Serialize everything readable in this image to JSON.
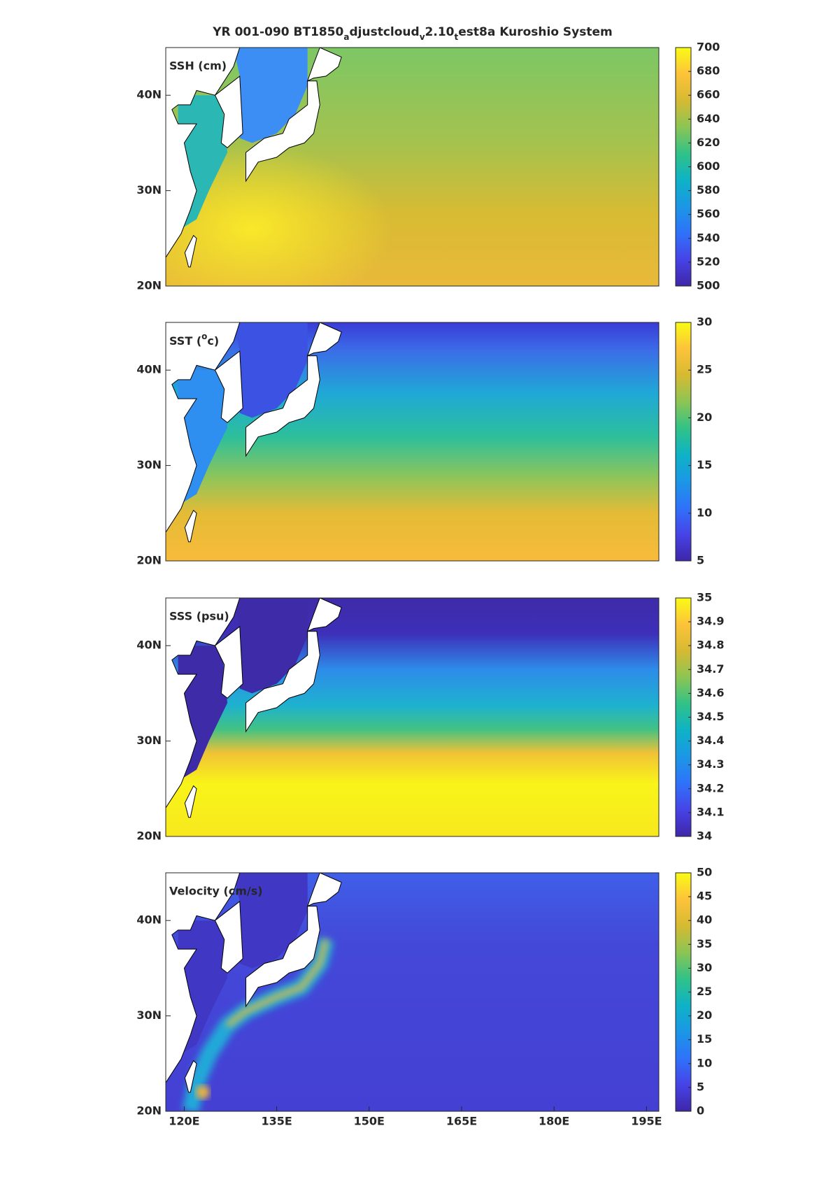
{
  "title": [
    "YR 001-090 BT1850",
    "a",
    "djustcloud",
    "v",
    "2.10",
    "t",
    "est8a Kuroshio System"
  ],
  "chart_data": [
    {
      "type": "map",
      "label": "SSH (cm)",
      "xlim": [
        117,
        197
      ],
      "ylim": [
        20,
        45
      ],
      "yticks": [
        {
          "value": 20,
          "label": "20N"
        },
        {
          "value": 30,
          "label": "30N"
        },
        {
          "value": 40,
          "label": "40N"
        }
      ],
      "clim": [
        500,
        700
      ],
      "cticks": [
        500,
        520,
        540,
        560,
        580,
        600,
        620,
        640,
        660,
        680,
        700
      ],
      "colormap": [
        "#3e26a8",
        "#4743e7",
        "#2f72fa",
        "#1b97e6",
        "#0eb2c6",
        "#30c287",
        "#8cc554",
        "#d6ba32",
        "#fdc33a",
        "#f9fb15"
      ]
    },
    {
      "type": "map",
      "label": [
        "SST (",
        "o",
        "c)"
      ],
      "xlim": [
        117,
        197
      ],
      "ylim": [
        20,
        45
      ],
      "yticks": [
        {
          "value": 20,
          "label": "20N"
        },
        {
          "value": 30,
          "label": "30N"
        },
        {
          "value": 40,
          "label": "40N"
        }
      ],
      "clim": [
        5,
        30
      ],
      "cticks": [
        5,
        10,
        15,
        20,
        25,
        30
      ],
      "colormap": [
        "#3e26a8",
        "#4743e7",
        "#2f72fa",
        "#1b97e6",
        "#0eb2c6",
        "#30c287",
        "#8cc554",
        "#d6ba32",
        "#fdc33a",
        "#f9fb15"
      ]
    },
    {
      "type": "map",
      "label": "SSS (psu)",
      "xlim": [
        117,
        197
      ],
      "ylim": [
        20,
        45
      ],
      "yticks": [
        {
          "value": 20,
          "label": "20N"
        },
        {
          "value": 30,
          "label": "30N"
        },
        {
          "value": 40,
          "label": "40N"
        }
      ],
      "clim": [
        34,
        35
      ],
      "cticks": [
        34,
        34.1,
        34.2,
        34.3,
        34.4,
        34.5,
        34.6,
        34.7,
        34.8,
        34.9,
        35
      ],
      "colormap": [
        "#3e26a8",
        "#4743e7",
        "#2f72fa",
        "#1b97e6",
        "#0eb2c6",
        "#30c287",
        "#8cc554",
        "#d6ba32",
        "#fdc33a",
        "#f9fb15"
      ]
    },
    {
      "type": "map",
      "label": "Velocity (cm/s)",
      "xlim": [
        117,
        197
      ],
      "ylim": [
        20,
        45
      ],
      "xticks": [
        {
          "value": 120,
          "label": "120E"
        },
        {
          "value": 135,
          "label": "135E"
        },
        {
          "value": 150,
          "label": "150E"
        },
        {
          "value": 165,
          "label": "165E"
        },
        {
          "value": 180,
          "label": "180E"
        },
        {
          "value": 195,
          "label": "195E"
        }
      ],
      "yticks": [
        {
          "value": 20,
          "label": "20N"
        },
        {
          "value": 30,
          "label": "30N"
        },
        {
          "value": 40,
          "label": "40N"
        }
      ],
      "clim": [
        0,
        50
      ],
      "cticks": [
        0,
        5,
        10,
        15,
        20,
        25,
        30,
        35,
        40,
        45,
        50
      ],
      "colormap": [
        "#3e26a8",
        "#4743e7",
        "#2f72fa",
        "#1b97e6",
        "#0eb2c6",
        "#30c287",
        "#8cc554",
        "#d6ba32",
        "#fdc33a",
        "#f9fb15"
      ]
    }
  ]
}
